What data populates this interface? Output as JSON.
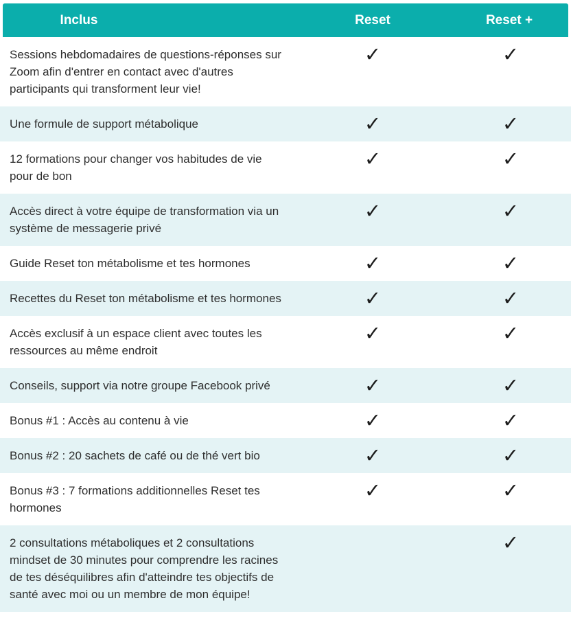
{
  "table": {
    "header": {
      "feature_label": "Inclus",
      "plans": [
        "Reset",
        "Reset +"
      ]
    },
    "check_glyph": "✓",
    "colors": {
      "header_bg": "#0baeac",
      "header_text": "#ffffff",
      "alt_row_bg": "#e4f3f5",
      "row_bg": "#ffffff",
      "body_text": "#2e2e2e",
      "check": "#1c1c1c"
    },
    "rows": [
      {
        "feature": "Sessions hebdomadaires de questions-réponses sur Zoom afin d'entrer en contact avec d'autres participants qui transforment leur vie!",
        "reset": true,
        "reset_plus": true
      },
      {
        "feature": "Une formule de support métabolique",
        "reset": true,
        "reset_plus": true
      },
      {
        "feature": "12 formations pour changer vos habitudes de vie pour de bon",
        "reset": true,
        "reset_plus": true
      },
      {
        "feature": "Accès direct à votre équipe de transformation via un système de messagerie privé",
        "reset": true,
        "reset_plus": true
      },
      {
        "feature": "Guide Reset ton métabolisme et tes hormones",
        "reset": true,
        "reset_plus": true
      },
      {
        "feature": "Recettes du Reset ton métabolisme et tes hormones",
        "reset": true,
        "reset_plus": true
      },
      {
        "feature": "Accès exclusif à un espace client avec toutes les ressources au même endroit",
        "reset": true,
        "reset_plus": true
      },
      {
        "feature": "Conseils, support via notre groupe Facebook privé",
        "reset": true,
        "reset_plus": true
      },
      {
        "feature": "Bonus #1 : Accès au contenu à vie",
        "reset": true,
        "reset_plus": true
      },
      {
        "feature": "Bonus #2 : 20 sachets de café ou de thé vert bio",
        "reset": true,
        "reset_plus": true
      },
      {
        "feature": "Bonus #3 : 7 formations additionnelles Reset tes hormones",
        "reset": true,
        "reset_plus": true
      },
      {
        "feature": "2 consultations métaboliques et 2 consultations mindset de 30 minutes pour comprendre les racines de tes déséquilibres afin d'atteindre tes objectifs de santé avec moi ou un membre de mon équipe!",
        "reset": false,
        "reset_plus": true
      }
    ]
  }
}
